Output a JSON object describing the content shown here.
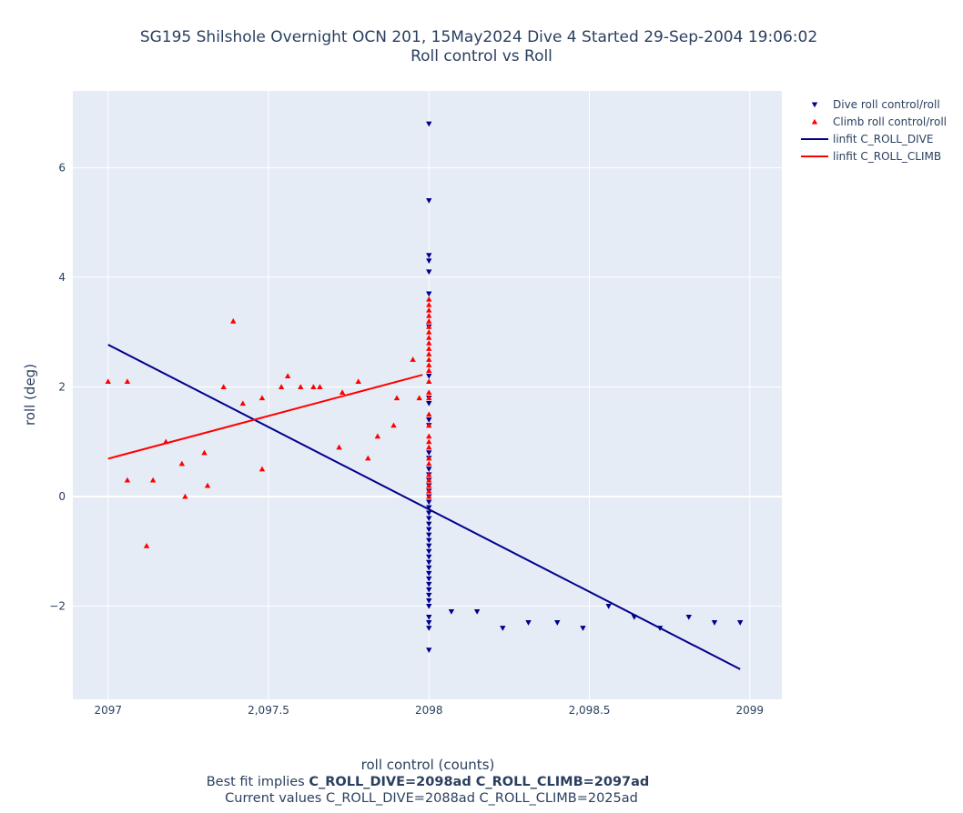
{
  "chart_data": {
    "type": "scatter",
    "title_line1": "SG195 Shilshole Overnight OCN 201, 15May2024 Dive 4 Started 29-Sep-2004 19:06:02",
    "title_line2": "Roll control vs Roll",
    "xlabel": "roll control (counts)",
    "ylabel": "roll (deg)",
    "xlim": [
      2096.89,
      2099.1
    ],
    "ylim": [
      -3.7,
      7.4
    ],
    "x_ticks": [
      2097,
      2097.5,
      2098,
      2098.5,
      2099
    ],
    "x_tick_labels": [
      "2097",
      "2,097.5",
      "2098",
      "2,098.5",
      "2099"
    ],
    "y_ticks": [
      -2,
      0,
      2,
      4,
      6
    ],
    "y_tick_labels": [
      "−2",
      "0",
      "2",
      "4",
      "6"
    ],
    "grid": true,
    "legend_position": "top-right",
    "footer": {
      "line1_prefix": "Best fit implies ",
      "line1_bold": "C_ROLL_DIVE=2098ad C_ROLL_CLIMB=2097ad",
      "line2": "Current values C_ROLL_DIVE=2088ad C_ROLL_CLIMB=2025ad"
    },
    "series": [
      {
        "name": "Dive roll control/roll",
        "kind": "markers",
        "marker": "triangle-down",
        "color": "#00008b",
        "points": [
          [
            2098,
            6.8
          ],
          [
            2098,
            5.4
          ],
          [
            2098,
            4.4
          ],
          [
            2098,
            4.3
          ],
          [
            2098,
            4.1
          ],
          [
            2098,
            3.7
          ],
          [
            2098,
            3.1
          ],
          [
            2098,
            2.2
          ],
          [
            2098,
            1.8
          ],
          [
            2098,
            1.7
          ],
          [
            2098,
            1.4
          ],
          [
            2098,
            1.3
          ],
          [
            2098,
            0.8
          ],
          [
            2098,
            0.7
          ],
          [
            2098,
            0.5
          ],
          [
            2098,
            0.4
          ],
          [
            2098,
            0.3
          ],
          [
            2098,
            0.2
          ],
          [
            2098,
            0.1
          ],
          [
            2098,
            0.0
          ],
          [
            2098,
            -0.1
          ],
          [
            2098,
            -0.2
          ],
          [
            2098,
            -0.3
          ],
          [
            2098,
            -0.4
          ],
          [
            2098,
            -0.5
          ],
          [
            2098,
            -0.6
          ],
          [
            2098,
            -0.7
          ],
          [
            2098,
            -0.8
          ],
          [
            2098,
            -0.9
          ],
          [
            2098,
            -1.0
          ],
          [
            2098,
            -1.1
          ],
          [
            2098,
            -1.2
          ],
          [
            2098,
            -1.3
          ],
          [
            2098,
            -1.4
          ],
          [
            2098,
            -1.5
          ],
          [
            2098,
            -1.6
          ],
          [
            2098,
            -1.7
          ],
          [
            2098,
            -1.8
          ],
          [
            2098,
            -1.9
          ],
          [
            2098,
            -2.0
          ],
          [
            2098,
            -2.2
          ],
          [
            2098,
            -2.3
          ],
          [
            2098,
            -2.4
          ],
          [
            2098,
            -2.8
          ],
          [
            2098.07,
            -2.1
          ],
          [
            2098.15,
            -2.1
          ],
          [
            2098.23,
            -2.4
          ],
          [
            2098.31,
            -2.3
          ],
          [
            2098.4,
            -2.3
          ],
          [
            2098.48,
            -2.4
          ],
          [
            2098.56,
            -2.0
          ],
          [
            2098.64,
            -2.2
          ],
          [
            2098.72,
            -2.4
          ],
          [
            2098.81,
            -2.2
          ],
          [
            2098.89,
            -2.3
          ],
          [
            2098.97,
            -2.3
          ]
        ]
      },
      {
        "name": "Climb roll control/roll",
        "kind": "markers",
        "marker": "triangle-up",
        "color": "#ff0000",
        "points": [
          [
            2097.0,
            2.1
          ],
          [
            2097.06,
            2.1
          ],
          [
            2097.06,
            0.3
          ],
          [
            2097.12,
            -0.9
          ],
          [
            2097.14,
            0.3
          ],
          [
            2097.18,
            1.0
          ],
          [
            2097.23,
            0.6
          ],
          [
            2097.24,
            0.0
          ],
          [
            2097.3,
            0.8
          ],
          [
            2097.31,
            0.2
          ],
          [
            2097.36,
            2.0
          ],
          [
            2097.39,
            3.2
          ],
          [
            2097.42,
            1.7
          ],
          [
            2097.48,
            1.8
          ],
          [
            2097.48,
            0.5
          ],
          [
            2097.54,
            2.0
          ],
          [
            2097.56,
            2.2
          ],
          [
            2097.6,
            2.0
          ],
          [
            2097.64,
            2.0
          ],
          [
            2097.66,
            2.0
          ],
          [
            2097.72,
            0.9
          ],
          [
            2097.73,
            1.9
          ],
          [
            2097.78,
            2.1
          ],
          [
            2097.81,
            0.7
          ],
          [
            2097.84,
            1.1
          ],
          [
            2097.89,
            1.3
          ],
          [
            2097.9,
            1.8
          ],
          [
            2097.95,
            2.5
          ],
          [
            2097.97,
            1.8
          ],
          [
            2098,
            3.6
          ],
          [
            2098,
            3.5
          ],
          [
            2098,
            3.4
          ],
          [
            2098,
            3.3
          ],
          [
            2098,
            3.2
          ],
          [
            2098,
            3.1
          ],
          [
            2098,
            3.0
          ],
          [
            2098,
            2.9
          ],
          [
            2098,
            2.8
          ],
          [
            2098,
            2.7
          ],
          [
            2098,
            2.6
          ],
          [
            2098,
            2.5
          ],
          [
            2098,
            2.4
          ],
          [
            2098,
            2.3
          ],
          [
            2098,
            2.1
          ],
          [
            2098,
            1.9
          ],
          [
            2098,
            1.8
          ],
          [
            2098,
            1.5
          ],
          [
            2098,
            1.3
          ],
          [
            2098,
            1.1
          ],
          [
            2098,
            1.0
          ],
          [
            2098,
            0.9
          ],
          [
            2098,
            0.7
          ],
          [
            2098,
            0.6
          ],
          [
            2098,
            0.4
          ],
          [
            2098,
            0.3
          ],
          [
            2098,
            0.2
          ],
          [
            2098,
            0.1
          ],
          [
            2098,
            0.0
          ]
        ]
      },
      {
        "name": "linfit C_ROLL_DIVE",
        "kind": "line",
        "color": "#00008b",
        "points": [
          [
            2097.0,
            2.77
          ],
          [
            2098.97,
            -3.15
          ]
        ]
      },
      {
        "name": "linfit C_ROLL_CLIMB",
        "kind": "line",
        "color": "#ff0000",
        "points": [
          [
            2097.0,
            0.69
          ],
          [
            2097.98,
            2.22
          ]
        ]
      }
    ]
  },
  "colors": {
    "plot_background": "#e5ecf6",
    "grid": "#ffffff",
    "text": "#2a3f5f"
  }
}
